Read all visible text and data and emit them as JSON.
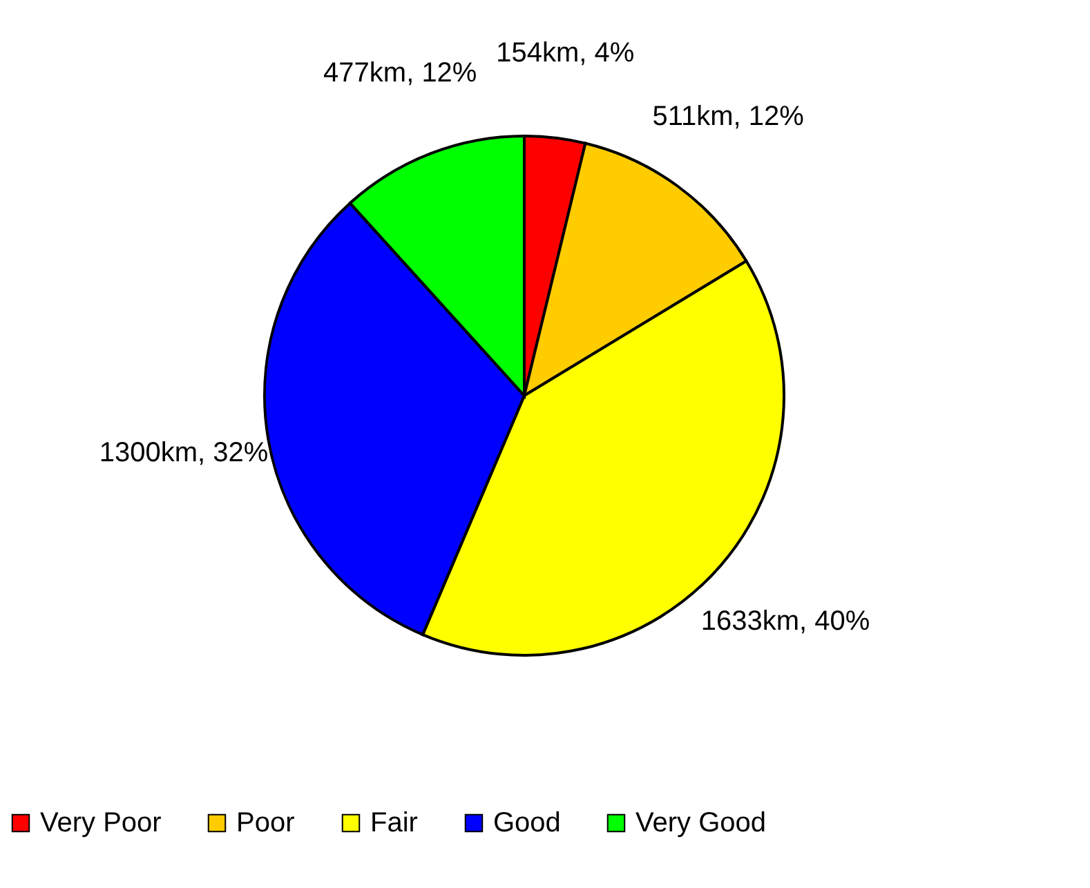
{
  "chart_data": {
    "type": "pie",
    "categories": [
      "Very Poor",
      "Poor",
      "Fair",
      "Good",
      "Very Good"
    ],
    "values": [
      154,
      511,
      1633,
      1300,
      477
    ],
    "colors": [
      "#ff0000",
      "#ffcc00",
      "#ffff00",
      "#0000ff",
      "#00ff00"
    ],
    "value_labels": [
      "154km, 4%",
      "511km, 12%",
      "1633km, 40%",
      "1300km, 32%",
      "477km, 12%"
    ],
    "legend": "bottom"
  }
}
